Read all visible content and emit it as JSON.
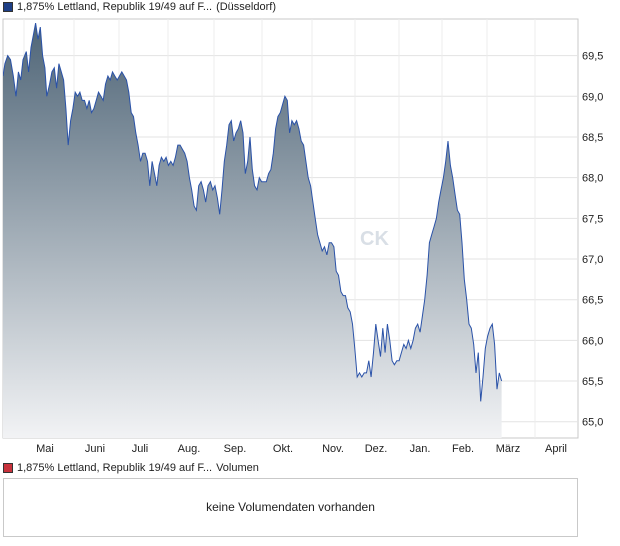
{
  "legend": {
    "price_series": {
      "label": "1,875% Lettland, Republik 19/49 auf F...",
      "suffix": "(Düsseldorf)",
      "color": "#1e3f86"
    },
    "volume_series": {
      "label": "1,875% Lettland, Republik 19/49 auf F...",
      "suffix": "Volumen",
      "color": "#c8323c"
    }
  },
  "watermark": "CK",
  "volume_panel": {
    "message": "keine Volumendaten vorhanden"
  },
  "chart_data": {
    "type": "area",
    "title": "",
    "xlabel": "",
    "ylabel": "",
    "x_ticks": [
      "Mai",
      "Juni",
      "Juli",
      "Aug.",
      "Sep.",
      "Okt.",
      "Nov.",
      "Dez.",
      "Jan.",
      "Feb.",
      "März",
      "April"
    ],
    "y_ticks": [
      "65,0",
      "65,5",
      "66,0",
      "66,5",
      "67,0",
      "67,5",
      "68,0",
      "68,5",
      "69,0",
      "69,5"
    ],
    "y_tick_values": [
      65.0,
      65.5,
      66.0,
      66.5,
      67.0,
      67.5,
      68.0,
      68.5,
      69.0,
      69.5
    ],
    "ylim": [
      64.8,
      69.95
    ],
    "x_range_months": [
      0,
      12.35
    ],
    "y_axis_side": "right",
    "grid": true,
    "series": [
      {
        "line_color": "#2a52a8",
        "fill_top_color": "#4f6577",
        "fill_bottom_color": "#f2f3f5",
        "points": [
          [
            0.0,
            69.25
          ],
          [
            0.04,
            69.4
          ],
          [
            0.1,
            69.5
          ],
          [
            0.16,
            69.45
          ],
          [
            0.22,
            69.25
          ],
          [
            0.28,
            69.0
          ],
          [
            0.33,
            69.3
          ],
          [
            0.38,
            69.2
          ],
          [
            0.43,
            69.45
          ],
          [
            0.5,
            69.55
          ],
          [
            0.55,
            69.3
          ],
          [
            0.6,
            69.6
          ],
          [
            0.65,
            69.75
          ],
          [
            0.7,
            69.9
          ],
          [
            0.75,
            69.7
          ],
          [
            0.8,
            69.85
          ],
          [
            0.85,
            69.5
          ],
          [
            0.9,
            69.35
          ],
          [
            0.94,
            69.0
          ],
          [
            1.0,
            69.15
          ],
          [
            1.05,
            69.3
          ],
          [
            1.1,
            69.35
          ],
          [
            1.15,
            69.1
          ],
          [
            1.2,
            69.4
          ],
          [
            1.25,
            69.3
          ],
          [
            1.3,
            69.2
          ],
          [
            1.35,
            68.85
          ],
          [
            1.4,
            68.4
          ],
          [
            1.45,
            68.7
          ],
          [
            1.5,
            68.85
          ],
          [
            1.55,
            69.05
          ],
          [
            1.6,
            69.0
          ],
          [
            1.65,
            69.05
          ],
          [
            1.7,
            68.95
          ],
          [
            1.75,
            68.95
          ],
          [
            1.8,
            68.85
          ],
          [
            1.85,
            68.95
          ],
          [
            1.9,
            68.8
          ],
          [
            1.95,
            68.85
          ],
          [
            2.0,
            68.95
          ],
          [
            2.05,
            69.05
          ],
          [
            2.1,
            69.0
          ],
          [
            2.15,
            68.95
          ],
          [
            2.2,
            69.15
          ],
          [
            2.25,
            69.25
          ],
          [
            2.3,
            69.2
          ],
          [
            2.35,
            69.3
          ],
          [
            2.4,
            69.25
          ],
          [
            2.45,
            69.2
          ],
          [
            2.5,
            69.25
          ],
          [
            2.55,
            69.3
          ],
          [
            2.6,
            69.25
          ],
          [
            2.65,
            69.2
          ],
          [
            2.7,
            69.05
          ],
          [
            2.75,
            68.8
          ],
          [
            2.8,
            68.75
          ],
          [
            2.85,
            68.55
          ],
          [
            2.9,
            68.4
          ],
          [
            2.95,
            68.2
          ],
          [
            3.0,
            68.3
          ],
          [
            3.05,
            68.3
          ],
          [
            3.1,
            68.2
          ],
          [
            3.15,
            67.9
          ],
          [
            3.2,
            68.2
          ],
          [
            3.25,
            68.05
          ],
          [
            3.3,
            67.9
          ],
          [
            3.35,
            68.15
          ],
          [
            3.4,
            68.25
          ],
          [
            3.45,
            68.2
          ],
          [
            3.5,
            68.25
          ],
          [
            3.55,
            68.15
          ],
          [
            3.6,
            68.2
          ],
          [
            3.65,
            68.15
          ],
          [
            3.7,
            68.25
          ],
          [
            3.75,
            68.4
          ],
          [
            3.8,
            68.4
          ],
          [
            3.85,
            68.35
          ],
          [
            3.9,
            68.3
          ],
          [
            3.95,
            68.2
          ],
          [
            4.0,
            68.0
          ],
          [
            4.05,
            67.85
          ],
          [
            4.1,
            67.65
          ],
          [
            4.15,
            67.6
          ],
          [
            4.2,
            67.9
          ],
          [
            4.25,
            67.95
          ],
          [
            4.3,
            67.85
          ],
          [
            4.35,
            67.7
          ],
          [
            4.4,
            67.9
          ],
          [
            4.45,
            67.95
          ],
          [
            4.5,
            67.85
          ],
          [
            4.55,
            67.9
          ],
          [
            4.6,
            67.75
          ],
          [
            4.65,
            67.55
          ],
          [
            4.7,
            67.85
          ],
          [
            4.75,
            68.2
          ],
          [
            4.8,
            68.4
          ],
          [
            4.85,
            68.65
          ],
          [
            4.9,
            68.7
          ],
          [
            4.95,
            68.45
          ],
          [
            5.0,
            68.55
          ],
          [
            5.05,
            68.6
          ],
          [
            5.1,
            68.7
          ],
          [
            5.15,
            68.55
          ],
          [
            5.2,
            68.05
          ],
          [
            5.25,
            68.2
          ],
          [
            5.3,
            68.5
          ],
          [
            5.35,
            68.1
          ],
          [
            5.4,
            67.9
          ],
          [
            5.45,
            67.85
          ],
          [
            5.5,
            68.0
          ],
          [
            5.55,
            67.95
          ],
          [
            5.6,
            67.95
          ],
          [
            5.65,
            67.95
          ],
          [
            5.7,
            68.05
          ],
          [
            5.75,
            68.1
          ],
          [
            5.8,
            68.3
          ],
          [
            5.85,
            68.6
          ],
          [
            5.9,
            68.75
          ],
          [
            5.95,
            68.8
          ],
          [
            6.0,
            68.9
          ],
          [
            6.05,
            69.0
          ],
          [
            6.1,
            68.95
          ],
          [
            6.15,
            68.55
          ],
          [
            6.2,
            68.7
          ],
          [
            6.25,
            68.65
          ],
          [
            6.3,
            68.7
          ],
          [
            6.35,
            68.6
          ],
          [
            6.4,
            68.45
          ],
          [
            6.45,
            68.4
          ],
          [
            6.5,
            68.2
          ],
          [
            6.55,
            68.0
          ],
          [
            6.6,
            67.9
          ],
          [
            6.65,
            67.7
          ],
          [
            6.7,
            67.5
          ],
          [
            6.75,
            67.3
          ],
          [
            6.8,
            67.2
          ],
          [
            6.85,
            67.1
          ],
          [
            6.9,
            67.15
          ],
          [
            6.95,
            67.05
          ],
          [
            7.0,
            67.2
          ],
          [
            7.05,
            67.2
          ],
          [
            7.1,
            67.15
          ],
          [
            7.15,
            66.85
          ],
          [
            7.2,
            66.8
          ],
          [
            7.25,
            66.6
          ],
          [
            7.3,
            66.55
          ],
          [
            7.35,
            66.55
          ],
          [
            7.4,
            66.4
          ],
          [
            7.45,
            66.35
          ],
          [
            7.5,
            66.2
          ],
          [
            7.55,
            65.9
          ],
          [
            7.6,
            65.55
          ],
          [
            7.65,
            65.6
          ],
          [
            7.7,
            65.55
          ],
          [
            7.75,
            65.6
          ],
          [
            7.8,
            65.6
          ],
          [
            7.85,
            65.75
          ],
          [
            7.9,
            65.55
          ],
          [
            7.95,
            65.85
          ],
          [
            8.0,
            66.2
          ],
          [
            8.05,
            66.0
          ],
          [
            8.1,
            65.8
          ],
          [
            8.15,
            66.15
          ],
          [
            8.2,
            65.85
          ],
          [
            8.25,
            66.2
          ],
          [
            8.3,
            66.0
          ],
          [
            8.35,
            65.75
          ],
          [
            8.4,
            65.7
          ],
          [
            8.45,
            65.75
          ],
          [
            8.5,
            65.75
          ],
          [
            8.55,
            65.85
          ],
          [
            8.6,
            65.95
          ],
          [
            8.65,
            65.9
          ],
          [
            8.7,
            66.0
          ],
          [
            8.75,
            65.9
          ],
          [
            8.8,
            66.0
          ],
          [
            8.85,
            66.15
          ],
          [
            8.9,
            66.2
          ],
          [
            8.95,
            66.1
          ],
          [
            9.0,
            66.3
          ],
          [
            9.05,
            66.5
          ],
          [
            9.1,
            66.8
          ],
          [
            9.15,
            67.2
          ],
          [
            9.2,
            67.3
          ],
          [
            9.25,
            67.4
          ],
          [
            9.3,
            67.5
          ],
          [
            9.35,
            67.7
          ],
          [
            9.4,
            67.85
          ],
          [
            9.45,
            68.0
          ],
          [
            9.5,
            68.2
          ],
          [
            9.55,
            68.45
          ],
          [
            9.6,
            68.15
          ],
          [
            9.65,
            68.0
          ],
          [
            9.7,
            67.8
          ],
          [
            9.75,
            67.6
          ],
          [
            9.8,
            67.55
          ],
          [
            9.85,
            67.2
          ],
          [
            9.9,
            66.75
          ],
          [
            9.95,
            66.5
          ],
          [
            10.0,
            66.2
          ],
          [
            10.05,
            66.15
          ],
          [
            10.1,
            65.95
          ],
          [
            10.15,
            65.6
          ],
          [
            10.2,
            65.85
          ],
          [
            10.25,
            65.25
          ],
          [
            10.3,
            65.55
          ],
          [
            10.35,
            65.9
          ],
          [
            10.4,
            66.05
          ],
          [
            10.45,
            66.15
          ],
          [
            10.5,
            66.2
          ],
          [
            10.55,
            65.95
          ],
          [
            10.6,
            65.4
          ],
          [
            10.65,
            65.6
          ],
          [
            10.7,
            65.5
          ]
        ]
      }
    ]
  }
}
